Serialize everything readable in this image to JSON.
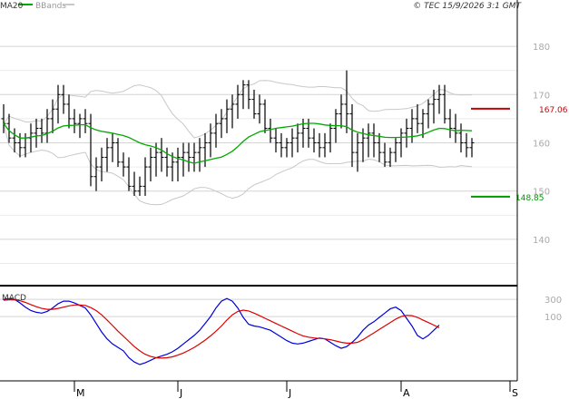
{
  "legend": {
    "ma20_label": "MA20",
    "ma20_color": "#00aa00",
    "bbands_label": "BBands",
    "bbands_color": "#c8c8c8"
  },
  "copyright": "© TEC 15/9/2026 3:1 GMT",
  "chart_data": [
    {
      "type": "ohlc",
      "title": "",
      "yticks": [
        "180",
        "170",
        "160",
        "150",
        "140"
      ],
      "ytick_values": [
        180,
        170,
        160,
        150,
        140
      ],
      "ylim": [
        130.4,
        189.6
      ],
      "xticks": [
        "M",
        "J",
        "J",
        "A",
        "S"
      ],
      "xtick_index": [
        13,
        32,
        52,
        73,
        93
      ],
      "hlines": [
        {
          "label": "167.06",
          "value": 167.06,
          "color": "#cc0000"
        },
        {
          "label": "148.85",
          "value": 148.85,
          "color": "#009900"
        }
      ],
      "grid": true,
      "series": [
        {
          "name": "MA20",
          "color": "#00aa00"
        },
        {
          "name": "BBands",
          "color": "#c8c8c8"
        }
      ],
      "bars": [
        [
          165,
          168,
          162,
          164
        ],
        [
          164,
          166,
          160,
          161
        ],
        [
          161,
          163,
          158,
          160
        ],
        [
          160,
          162,
          157,
          159
        ],
        [
          159,
          162,
          157,
          161
        ],
        [
          161,
          164,
          158,
          162
        ],
        [
          162,
          165,
          159,
          163
        ],
        [
          163,
          165,
          160,
          162
        ],
        [
          162,
          167,
          160,
          165
        ],
        [
          165,
          169,
          162,
          167
        ],
        [
          167,
          172,
          164,
          170
        ],
        [
          170,
          172,
          166,
          168
        ],
        [
          168,
          170,
          163,
          165
        ],
        [
          165,
          167,
          162,
          164
        ],
        [
          164,
          166,
          161,
          165
        ],
        [
          165,
          167,
          162,
          164
        ],
        [
          164,
          166,
          151,
          153
        ],
        [
          153,
          157,
          150,
          155
        ],
        [
          155,
          159,
          152,
          157
        ],
        [
          157,
          161,
          154,
          159
        ],
        [
          159,
          162,
          156,
          160
        ],
        [
          160,
          161,
          155,
          156
        ],
        [
          156,
          158,
          153,
          155
        ],
        [
          155,
          157,
          150,
          151
        ],
        [
          151,
          154,
          149,
          150
        ],
        [
          150,
          153,
          149,
          151
        ],
        [
          151,
          157,
          149,
          155
        ],
        [
          155,
          159,
          152,
          157
        ],
        [
          157,
          160,
          153,
          158
        ],
        [
          158,
          161,
          154,
          157
        ],
        [
          157,
          159,
          153,
          155
        ],
        [
          155,
          158,
          152,
          156
        ],
        [
          156,
          159,
          152,
          157
        ],
        [
          157,
          160,
          153,
          158
        ],
        [
          158,
          160,
          154,
          157
        ],
        [
          157,
          160,
          154,
          158
        ],
        [
          158,
          161,
          154,
          159
        ],
        [
          159,
          162,
          155,
          160
        ],
        [
          160,
          164,
          157,
          162
        ],
        [
          162,
          166,
          159,
          164
        ],
        [
          164,
          167,
          161,
          165
        ],
        [
          165,
          169,
          162,
          167
        ],
        [
          167,
          170,
          163,
          168
        ],
        [
          168,
          172,
          165,
          170
        ],
        [
          170,
          173,
          167,
          172
        ],
        [
          172,
          173,
          167,
          169
        ],
        [
          169,
          171,
          165,
          166
        ],
        [
          166,
          170,
          164,
          168
        ],
        [
          168,
          169,
          162,
          163
        ],
        [
          163,
          165,
          160,
          161
        ],
        [
          161,
          163,
          158,
          160
        ],
        [
          160,
          162,
          157,
          159
        ],
        [
          159,
          161,
          157,
          160
        ],
        [
          160,
          163,
          157,
          161
        ],
        [
          161,
          164,
          158,
          162
        ],
        [
          162,
          165,
          159,
          163
        ],
        [
          163,
          165,
          159,
          161
        ],
        [
          161,
          163,
          158,
          160
        ],
        [
          160,
          162,
          157,
          159
        ],
        [
          159,
          162,
          157,
          160
        ],
        [
          160,
          164,
          158,
          163
        ],
        [
          163,
          167,
          160,
          166
        ],
        [
          166,
          170,
          163,
          168
        ],
        [
          168,
          175,
          162,
          166
        ],
        [
          166,
          168,
          155,
          158
        ],
        [
          158,
          162,
          154,
          160
        ],
        [
          160,
          163,
          156,
          161
        ],
        [
          161,
          164,
          157,
          162
        ],
        [
          162,
          164,
          157,
          160
        ],
        [
          160,
          162,
          156,
          158
        ],
        [
          158,
          160,
          155,
          156
        ],
        [
          156,
          159,
          155,
          158
        ],
        [
          158,
          161,
          156,
          160
        ],
        [
          160,
          163,
          157,
          162
        ],
        [
          162,
          165,
          159,
          163
        ],
        [
          163,
          167,
          160,
          165
        ],
        [
          165,
          168,
          162,
          164
        ],
        [
          164,
          167,
          161,
          166
        ],
        [
          166,
          169,
          163,
          168
        ],
        [
          168,
          171,
          164,
          169
        ],
        [
          169,
          172,
          166,
          170
        ],
        [
          170,
          172,
          164,
          165
        ],
        [
          165,
          167,
          161,
          163
        ],
        [
          163,
          166,
          160,
          162
        ],
        [
          162,
          164,
          158,
          160
        ],
        [
          160,
          162,
          157,
          159
        ],
        [
          159,
          161,
          157,
          160
        ]
      ]
    },
    {
      "type": "line",
      "title": "MACD",
      "yticks": [
        "300",
        "100"
      ],
      "ytick_values": [
        300,
        100
      ],
      "ylim": [
        -650,
        450
      ],
      "series": [
        {
          "name": "MACD",
          "color": "#0000dd",
          "values": [
            300,
            310,
            300,
            260,
            210,
            170,
            150,
            140,
            160,
            200,
            250,
            280,
            280,
            260,
            230,
            200,
            120,
            20,
            -80,
            -160,
            -220,
            -260,
            -300,
            -380,
            -430,
            -460,
            -440,
            -410,
            -380,
            -360,
            -340,
            -310,
            -270,
            -220,
            -170,
            -120,
            -60,
            20,
            100,
            200,
            280,
            310,
            280,
            200,
            90,
            10,
            -10,
            -20,
            -40,
            -60,
            -100,
            -140,
            -180,
            -210,
            -220,
            -210,
            -190,
            -170,
            -150,
            -160,
            -200,
            -240,
            -270,
            -250,
            -200,
            -140,
            -60,
            0,
            40,
            90,
            140,
            190,
            210,
            170,
            80,
            -10,
            -120,
            -160,
            -120,
            -60,
            0
          ]
        },
        {
          "name": "Signal",
          "color": "#dd0000",
          "values": [
            290,
            295,
            295,
            285,
            265,
            240,
            215,
            195,
            185,
            185,
            195,
            210,
            225,
            235,
            235,
            230,
            205,
            170,
            120,
            60,
            -5,
            -70,
            -130,
            -190,
            -250,
            -300,
            -340,
            -365,
            -380,
            -385,
            -380,
            -370,
            -350,
            -325,
            -295,
            -260,
            -220,
            -175,
            -125,
            -70,
            -10,
            60,
            120,
            160,
            175,
            165,
            140,
            110,
            80,
            50,
            20,
            -10,
            -40,
            -70,
            -100,
            -125,
            -140,
            -150,
            -155,
            -160,
            -170,
            -185,
            -200,
            -210,
            -210,
            -200,
            -170,
            -130,
            -90,
            -50,
            -10,
            30,
            70,
            100,
            115,
            110,
            90,
            60,
            30,
            0,
            -30
          ]
        }
      ]
    }
  ]
}
